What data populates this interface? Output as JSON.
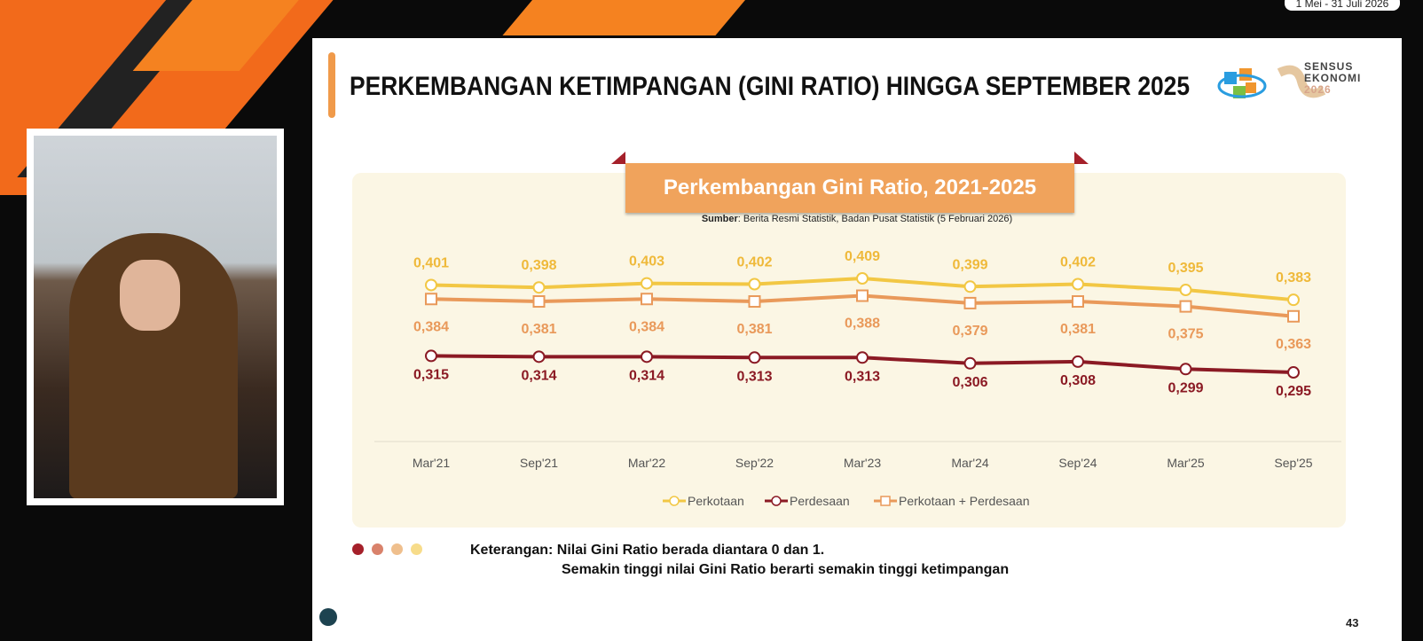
{
  "date_badge": "1 Mei - 31 Juli 2026",
  "slide": {
    "title": "PERKEMBANGAN KETIMPANGAN (GINI RATIO) HINGGA SEPTEMBER 2025",
    "logo_text": [
      "SENSUS",
      "EKONOMI",
      "2026"
    ],
    "banner": "Perkembangan Gini Ratio, 2021-2025",
    "source_label": "Sumber",
    "source_text": ": Berita Resmi Statistik, Badan Pusat Statistik (5 Februari 2026)",
    "note_line1": "Keterangan: Nilai Gini Ratio berada diantara 0 dan 1.",
    "note_line2": "Semakin tinggi nilai Gini Ratio berarti semakin tinggi ketimpangan",
    "page_number": "43",
    "dot_colors": [
      "#a5202a",
      "#d9826b",
      "#efbf8d",
      "#f7dc8a"
    ]
  },
  "chart_data": {
    "type": "line",
    "title": "Perkembangan Gini Ratio, 2021-2025",
    "categories": [
      "Mar'21",
      "Sep'21",
      "Mar'22",
      "Sep'22",
      "Mar'23",
      "Mar'24",
      "Sep'24",
      "Mar'25",
      "Sep'25"
    ],
    "series": [
      {
        "name": "Perkotaan",
        "color": "#f2c744",
        "marker": "circle",
        "values": [
          0.401,
          0.398,
          0.403,
          0.402,
          0.409,
          0.399,
          0.402,
          0.395,
          0.383
        ],
        "labels": [
          "0,401",
          "0,398",
          "0,403",
          "0,402",
          "0,409",
          "0,399",
          "0,402",
          "0,395",
          "0,383"
        ]
      },
      {
        "name": "Perdesaan",
        "color": "#8b1a24",
        "marker": "circle",
        "values": [
          0.315,
          0.314,
          0.314,
          0.313,
          0.313,
          0.306,
          0.308,
          0.299,
          0.295
        ],
        "labels": [
          "0,315",
          "0,314",
          "0,314",
          "0,313",
          "0,313",
          "0,306",
          "0,308",
          "0,299",
          "0,295"
        ]
      },
      {
        "name": "Perkotaan + Perdesaan",
        "color": "#e9995a",
        "marker": "square",
        "values": [
          0.384,
          0.381,
          0.384,
          0.381,
          0.388,
          0.379,
          0.381,
          0.375,
          0.363
        ],
        "labels": [
          "0,384",
          "0,381",
          "0,384",
          "0,381",
          "0,388",
          "0,379",
          "0,381",
          "0,375",
          "0,363"
        ]
      }
    ],
    "legend_position": "bottom",
    "grid": false
  }
}
